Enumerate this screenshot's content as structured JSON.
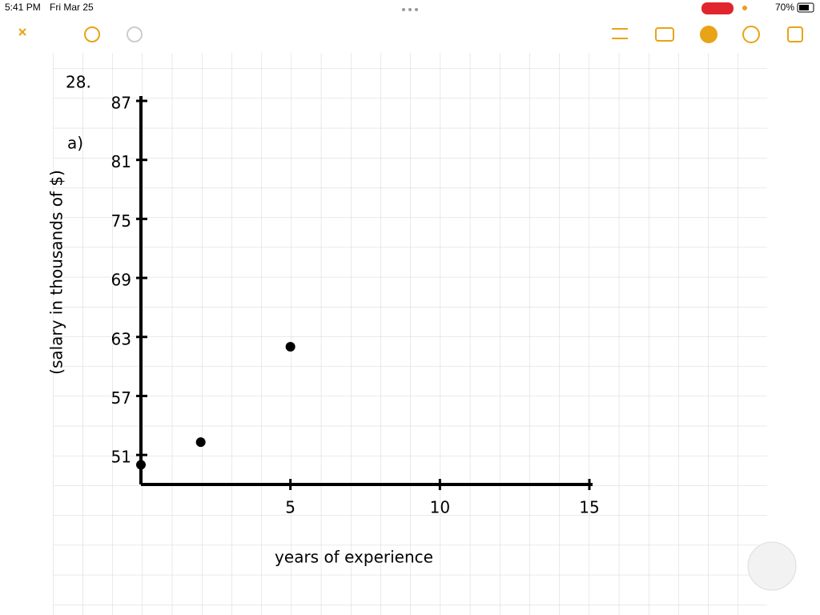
{
  "status_bar": {
    "time": "5:41 PM",
    "date": "Fri Mar 25",
    "battery": "70%"
  },
  "note": {
    "problem_number": "28.",
    "part": "a)"
  },
  "chart_data": {
    "type": "scatter",
    "x_label": "years of experience",
    "y_label": "(salary in thousands of $)",
    "x": [
      0,
      2,
      5
    ],
    "values": [
      50,
      52.3,
      62
    ],
    "color": "#000000",
    "xlim": [
      0,
      15
    ],
    "xticks": [
      5,
      10,
      15
    ],
    "ylim": [
      48,
      87
    ],
    "yticks": [
      51,
      57,
      63,
      69,
      75,
      81,
      87
    ]
  }
}
